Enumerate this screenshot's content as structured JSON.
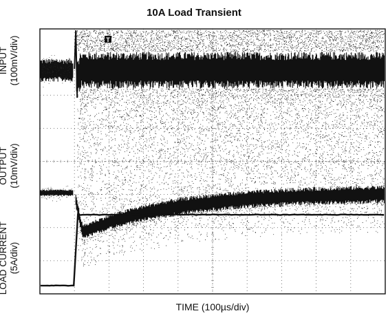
{
  "chart_data": {
    "type": "line",
    "title": "10A Load Transient",
    "xlabel": "TIME (100µs/div)",
    "channels": [
      {
        "name": "INPUT",
        "scale": "(100mV/div)"
      },
      {
        "name": "OUTPUT",
        "scale": "(10mV/div)"
      },
      {
        "name": "LOAD CURRENT",
        "scale": "(5A/div)"
      }
    ],
    "x_divisions": 10,
    "y_divisions": 8,
    "time_units": "µs",
    "time_per_div": 100,
    "step_time": 100,
    "grid": true,
    "trigger_marker": "T",
    "load_current": {
      "before_A": 0,
      "after_A": 10,
      "unit": "A"
    },
    "output_transient": {
      "dip_divisions": 1.3,
      "dip_mV": 13,
      "recovery_time_us": 800
    },
    "input_noise": {
      "band_divisions_before": 0.7,
      "band_divisions_after": 1.6
    }
  }
}
